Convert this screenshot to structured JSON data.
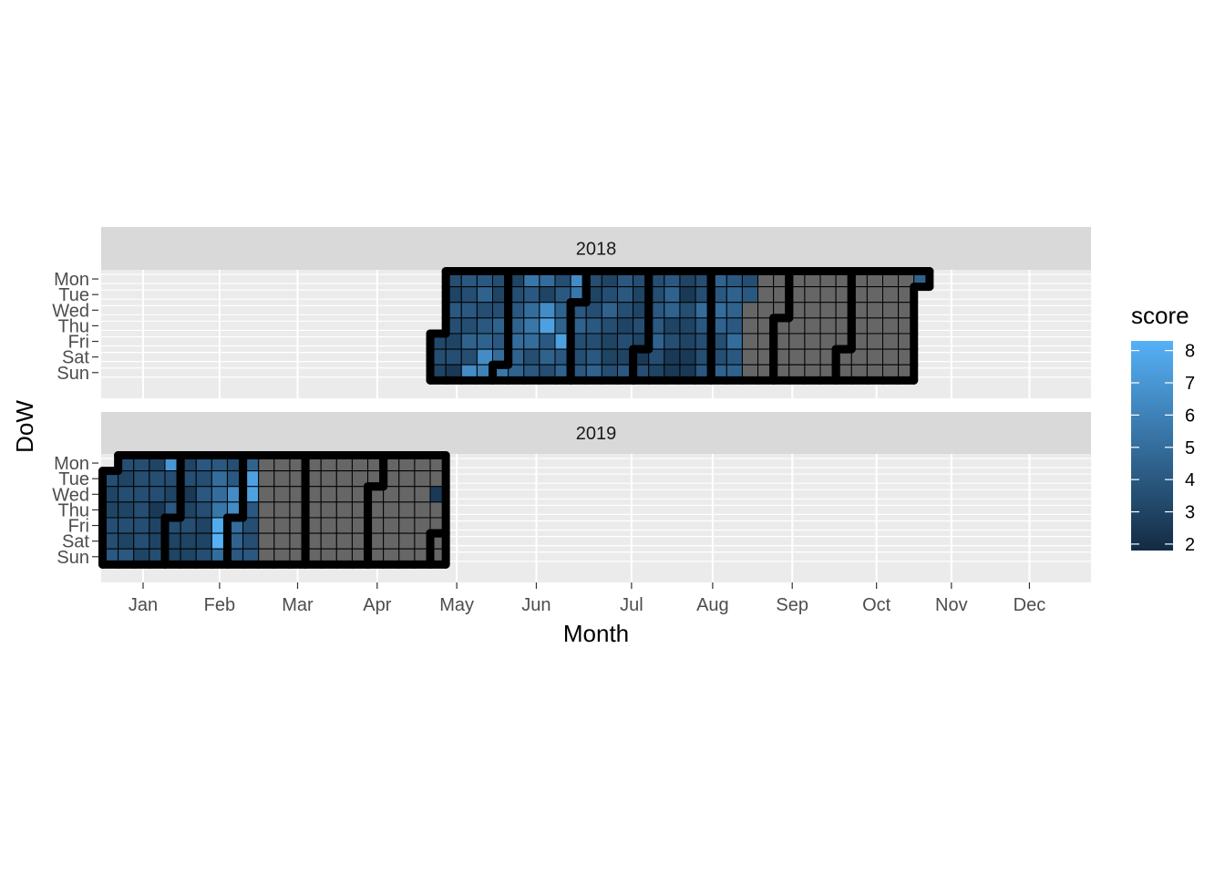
{
  "chart_data": {
    "type": "heatmap",
    "title": "",
    "xlabel": "Month",
    "ylabel": "DoW",
    "months": [
      "Jan",
      "Feb",
      "Mar",
      "Apr",
      "May",
      "Jun",
      "Jul",
      "Aug",
      "Sep",
      "Oct",
      "Nov",
      "Dec"
    ],
    "days": [
      "Mon",
      "Tue",
      "Wed",
      "Thu",
      "Fri",
      "Sat",
      "Sun"
    ],
    "legend": {
      "title": "score",
      "breaks": [
        8,
        7,
        6,
        5,
        4,
        3,
        2
      ],
      "min": 1.8,
      "max": 8.3,
      "low_color": "#132B43",
      "high_color": "#56B1F7",
      "missing_color": "#666666",
      "position": "right"
    },
    "facets": [
      {
        "label": "2018",
        "start_date": "2018-06-01",
        "end_date": "2018-12-31",
        "observed_through": "2018-10-21",
        "extra_scores": [
          {
            "date": "2018-12-31",
            "score": 4.5
          }
        ],
        "week_scores": [
          [
            null,
            null,
            null,
            null,
            3.2,
            3.5,
            3.0
          ],
          [
            3.5,
            3.0,
            4.0,
            3.5,
            3.0,
            3.5,
            2.5
          ],
          [
            4.0,
            3.5,
            4.0,
            3.5,
            4.5,
            3.5,
            6.5
          ],
          [
            4.0,
            4.5,
            3.5,
            4.0,
            4.5,
            6.5,
            6.0
          ],
          [
            3.5,
            3.0,
            3.5,
            4.5,
            4.0,
            5.0,
            5.5
          ],
          [
            3.0,
            3.5,
            4.0,
            4.5,
            5.0,
            4.5,
            4.5
          ],
          [
            5.5,
            4.0,
            5.0,
            5.5,
            5.0,
            3.5,
            4.0
          ],
          [
            5.0,
            3.0,
            6.5,
            7.5,
            4.0,
            4.5,
            3.5
          ],
          [
            3.5,
            4.0,
            4.5,
            4.5,
            7.5,
            4.0,
            4.5
          ],
          [
            6.5,
            5.5,
            4.0,
            4.5,
            3.5,
            3.5,
            4.0
          ],
          [
            3.5,
            3.0,
            3.5,
            4.0,
            3.5,
            4.0,
            4.5
          ],
          [
            3.0,
            3.5,
            4.5,
            3.5,
            3.0,
            3.0,
            3.5
          ],
          [
            4.0,
            4.0,
            3.5,
            3.0,
            3.5,
            3.0,
            4.0
          ],
          [
            3.5,
            3.0,
            3.0,
            3.5,
            3.0,
            2.5,
            3.5
          ],
          [
            3.5,
            3.5,
            4.0,
            4.0,
            4.5,
            3.5,
            3.0
          ],
          [
            4.0,
            4.5,
            4.5,
            3.0,
            3.5,
            2.5,
            2.5
          ],
          [
            3.0,
            2.5,
            3.5,
            3.0,
            3.0,
            2.5,
            2.5
          ],
          [
            3.5,
            3.5,
            5.0,
            4.0,
            3.5,
            3.5,
            4.0
          ],
          [
            4.5,
            4.0,
            5.0,
            4.5,
            3.5,
            3.5,
            4.5
          ],
          [
            4.0,
            4.5,
            4.5,
            4.0,
            5.0,
            4.0,
            4.5
          ],
          [
            3.5,
            4.0,
            null,
            null,
            null,
            null,
            null
          ]
        ]
      },
      {
        "label": "2019",
        "start_date": "2019-01-01",
        "end_date": "2019-06-02",
        "observed_through": "2019-03-10",
        "extra_scores": [
          {
            "date": "2019-05-29",
            "score": 2.5
          }
        ],
        "week_scores": [
          [
            null,
            3.5,
            3.0,
            3.0,
            3.5,
            3.5,
            4.0
          ],
          [
            3.5,
            3.0,
            3.5,
            3.0,
            3.5,
            3.0,
            4.0
          ],
          [
            3.5,
            3.5,
            3.5,
            3.5,
            3.5,
            3.5,
            3.0
          ],
          [
            3.0,
            3.5,
            3.5,
            2.5,
            3.0,
            3.0,
            3.5
          ],
          [
            7.0,
            3.5,
            3.0,
            4.0,
            3.5,
            3.0,
            3.0
          ],
          [
            3.0,
            3.5,
            2.5,
            3.0,
            3.5,
            3.0,
            3.0
          ],
          [
            4.0,
            3.5,
            4.0,
            3.5,
            3.0,
            3.0,
            3.5
          ],
          [
            4.0,
            5.0,
            5.0,
            5.5,
            8.0,
            8.5,
            5.0
          ],
          [
            3.5,
            4.0,
            6.5,
            6.5,
            5.0,
            4.5,
            4.0
          ],
          [
            4.5,
            7.5,
            7.5,
            4.0,
            3.5,
            3.5,
            4.0
          ],
          [
            3.5,
            3.0,
            3.0,
            3.5,
            3.0,
            3.5,
            4.0
          ],
          [
            4.0,
            3.5,
            3.5,
            3.0,
            3.5,
            4.0,
            4.5
          ],
          [
            3.5,
            3.5,
            4.0,
            4.5,
            4.0,
            4.5,
            5.0
          ],
          [
            3.5,
            4.0,
            5.0,
            4.5,
            5.0,
            5.5,
            5.0
          ],
          [
            3.5,
            3.5,
            4.0,
            null,
            null,
            null,
            null
          ]
        ]
      }
    ]
  }
}
